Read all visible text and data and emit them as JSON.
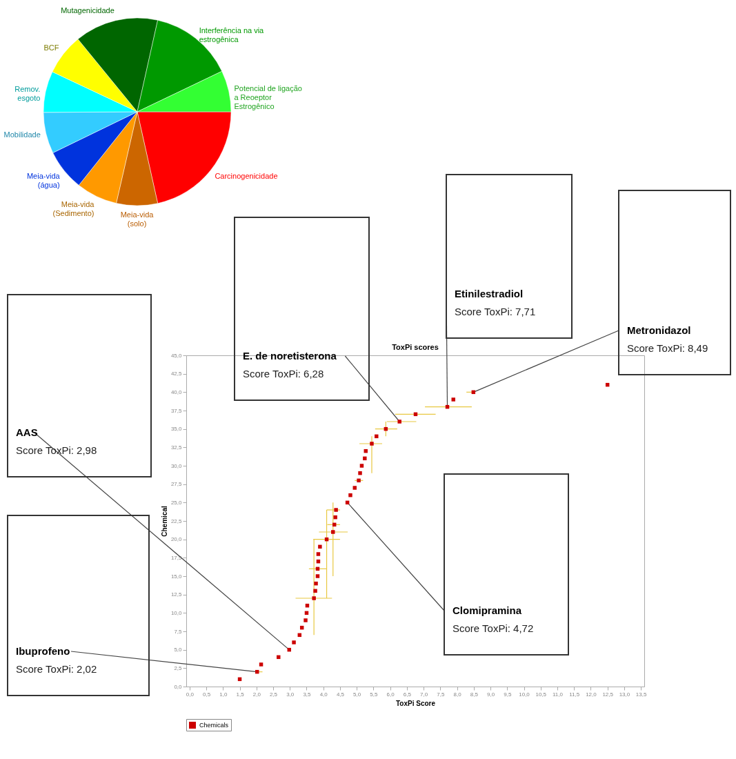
{
  "chart_data": [
    {
      "type": "pie",
      "categories": [
        "Carcinogenicidade",
        "Meia-vida (solo)",
        "Meia-vida (Sedimento)",
        "Meia-vida (água)",
        "Mobilidade",
        "Remov. esgoto",
        "BCF",
        "Mutagenicidade",
        "Interferência na via estrogênica",
        "Potencial de ligação a Reoeptor Estrogênico"
      ],
      "values": [
        21.5,
        7.1,
        7.1,
        7.1,
        7.1,
        7.1,
        7.1,
        14.4,
        14.4,
        7.1
      ],
      "colors": [
        "#ff0000",
        "#cc6600",
        "#ff9900",
        "#0033dd",
        "#33ccff",
        "#00ffff",
        "#ffff00",
        "#006600",
        "#009900",
        "#33ff33"
      ]
    },
    {
      "type": "scatter",
      "title": "ToxPi scores",
      "xlabel": "ToxPi Score",
      "ylabel": "Chemical",
      "x": [
        1.5,
        2.02,
        2.14,
        2.66,
        2.98,
        3.12,
        3.29,
        3.36,
        3.47,
        3.5,
        3.52,
        3.72,
        3.76,
        3.78,
        3.83,
        3.83,
        3.85,
        3.85,
        3.9,
        4.1,
        4.29,
        4.33,
        4.36,
        4.38,
        4.72,
        4.81,
        4.94,
        5.06,
        5.1,
        5.15,
        5.24,
        5.27,
        5.45,
        5.59,
        5.87,
        6.28,
        6.76,
        7.71,
        7.89,
        8.49,
        12.5
      ],
      "series": [
        {
          "name": "Chemicals",
          "color": "#cc0000",
          "values": [
            1,
            2,
            3,
            4,
            5,
            6,
            7,
            8,
            9,
            10,
            11,
            12,
            13,
            14,
            15,
            16,
            17,
            18,
            19,
            20,
            21,
            22,
            23,
            24,
            25,
            26,
            27,
            28,
            29,
            30,
            31,
            32,
            33,
            34,
            35,
            36,
            37,
            38,
            39,
            40,
            41
          ],
          "errors": [
            null,
            null,
            null,
            null,
            null,
            null,
            null,
            null,
            null,
            null,
            null,
            [
              7,
              20
            ],
            null,
            null,
            null,
            null,
            null,
            null,
            null,
            [
              12,
              24
            ],
            [
              15,
              25
            ],
            null,
            null,
            null,
            null,
            null,
            null,
            null,
            null,
            null,
            null,
            null,
            [
              29,
              34
            ],
            null,
            [
              34,
              36
            ],
            null,
            null,
            null,
            null,
            null,
            null
          ],
          "xerrors": [
            null,
            [
              1.99,
              2.18
            ],
            null,
            null,
            null,
            null,
            null,
            null,
            null,
            null,
            null,
            [
              3.17,
              4.26
            ],
            null,
            null,
            null,
            [
              3.57,
              4.1
            ],
            null,
            null,
            null,
            [
              3.7,
              4.5
            ],
            [
              3.87,
              4.73
            ],
            [
              4.12,
              4.5
            ],
            null,
            [
              4.1,
              4.5
            ],
            null,
            null,
            null,
            [
              4.94,
              5.19
            ],
            null,
            null,
            null,
            null,
            [
              5.08,
              5.76
            ],
            null,
            [
              5.55,
              6.21
            ],
            [
              5.9,
              6.78
            ],
            [
              6.15,
              7.36
            ],
            [
              7.04,
              8.44
            ],
            null,
            [
              8.28,
              8.49
            ],
            null
          ]
        }
      ],
      "marker": "square",
      "legend": "bottom",
      "grid": false,
      "xlim": [
        -0.1,
        13.6
      ],
      "ylim": [
        0,
        45
      ],
      "xticks": [
        {
          "value": 0,
          "label": "0,0"
        },
        {
          "value": 0.5,
          "label": "0,5"
        },
        {
          "value": 1,
          "label": "1,0"
        },
        {
          "value": 1.5,
          "label": "1,5"
        },
        {
          "value": 2,
          "label": "2,0"
        },
        {
          "value": 2.5,
          "label": "2,5"
        },
        {
          "value": 3,
          "label": "3,0"
        },
        {
          "value": 3.5,
          "label": "3,5"
        },
        {
          "value": 4,
          "label": "4,0"
        },
        {
          "value": 4.5,
          "label": "4,5"
        },
        {
          "value": 5,
          "label": "5,0"
        },
        {
          "value": 5.5,
          "label": "5,5"
        },
        {
          "value": 6,
          "label": "6,0"
        },
        {
          "value": 6.5,
          "label": "6,5"
        },
        {
          "value": 7,
          "label": "7,0"
        },
        {
          "value": 7.5,
          "label": "7,5"
        },
        {
          "value": 8,
          "label": "8,0"
        },
        {
          "value": 8.5,
          "label": "8,5"
        },
        {
          "value": 9,
          "label": "9,0"
        },
        {
          "value": 9.5,
          "label": "9,5"
        },
        {
          "value": 10,
          "label": "10,0"
        },
        {
          "value": 10.5,
          "label": "10,5"
        },
        {
          "value": 11,
          "label": "11,0"
        },
        {
          "value": 11.5,
          "label": "11,5"
        },
        {
          "value": 12,
          "label": "12,0"
        },
        {
          "value": 12.5,
          "label": "12,5"
        },
        {
          "value": 13,
          "label": "13,0"
        },
        {
          "value": 13.5,
          "label": "13,5"
        }
      ],
      "yticks": [
        {
          "value": 0,
          "label": "0,0"
        },
        {
          "value": 2.5,
          "label": "2,5"
        },
        {
          "value": 5,
          "label": "5,0"
        },
        {
          "value": 7.5,
          "label": "7,5"
        },
        {
          "value": 10,
          "label": "10,0"
        },
        {
          "value": 12.5,
          "label": "12,5"
        },
        {
          "value": 15,
          "label": "15,0"
        },
        {
          "value": 17.5,
          "label": "17,5"
        },
        {
          "value": 20,
          "label": "20,0"
        },
        {
          "value": 22.5,
          "label": "22,5"
        },
        {
          "value": 25,
          "label": "25,0"
        },
        {
          "value": 27.5,
          "label": "27,5"
        },
        {
          "value": 30,
          "label": "30,0"
        },
        {
          "value": 32.5,
          "label": "32,5"
        },
        {
          "value": 35,
          "label": "35,0"
        },
        {
          "value": 37.5,
          "label": "37,5"
        },
        {
          "value": 40,
          "label": "40,0"
        },
        {
          "value": 42.5,
          "label": "42,5"
        },
        {
          "value": 45,
          "label": "45,0"
        }
      ],
      "annotations": [
        {
          "text": "Ibuprofeno",
          "x": 2.02,
          "y": 2
        },
        "Score ToxPi: 2,02",
        {
          "text": "AAS",
          "x": 2.98,
          "y": 5
        },
        "Score ToxPi: 2,98",
        {
          "text": "E. de noretisterona",
          "x": 6.28,
          "y": 36
        },
        "Score ToxPi: 6,28",
        {
          "text": "Etinilestradiol",
          "x": 7.71,
          "y": 38
        },
        "Score ToxPi: 7,71",
        {
          "text": "Metronidazol",
          "x": 8.49,
          "y": 40
        },
        "Score ToxPi: 8,49",
        {
          "text": "Clomipramina",
          "x": 4.72,
          "y": 25
        },
        "Score ToxPi: 4,72"
      ]
    }
  ]
}
